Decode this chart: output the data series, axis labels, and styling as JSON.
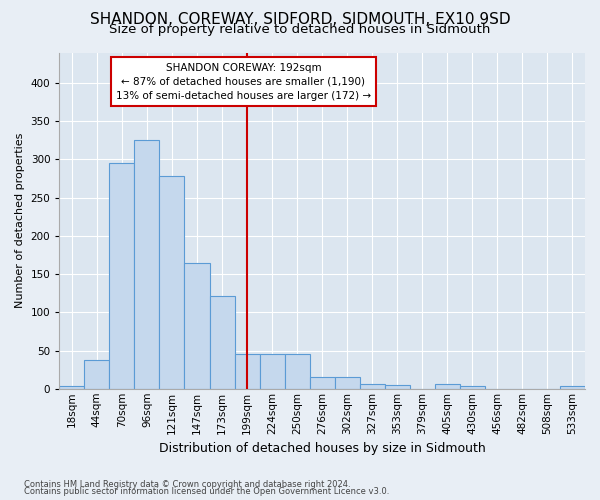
{
  "title1": "SHANDON, COREWAY, SIDFORD, SIDMOUTH, EX10 9SD",
  "title2": "Size of property relative to detached houses in Sidmouth",
  "xlabel": "Distribution of detached houses by size in Sidmouth",
  "ylabel": "Number of detached properties",
  "footer1": "Contains HM Land Registry data © Crown copyright and database right 2024.",
  "footer2": "Contains public sector information licensed under the Open Government Licence v3.0.",
  "annotation_title": "SHANDON COREWAY: 192sqm",
  "annotation_line1": "← 87% of detached houses are smaller (1,190)",
  "annotation_line2": "13% of semi-detached houses are larger (172) →",
  "property_size": 192,
  "bar_labels": [
    "18sqm",
    "44sqm",
    "70sqm",
    "96sqm",
    "121sqm",
    "147sqm",
    "173sqm",
    "199sqm",
    "224sqm",
    "250sqm",
    "276sqm",
    "302sqm",
    "327sqm",
    "353sqm",
    "379sqm",
    "405sqm",
    "430sqm",
    "456sqm",
    "482sqm",
    "508sqm",
    "533sqm"
  ],
  "bar_values": [
    4,
    38,
    295,
    325,
    278,
    165,
    122,
    45,
    46,
    46,
    15,
    15,
    6,
    5,
    0,
    6,
    4,
    0,
    0,
    0,
    4
  ],
  "bar_color": "#c5d8ed",
  "bar_edge_color": "#5b9bd5",
  "vline_color": "#cc0000",
  "vline_x_index": 7,
  "annotation_box_color": "#cc0000",
  "background_color": "#e8eef5",
  "plot_bg_color": "#dce6f0",
  "grid_color": "#ffffff",
  "ylim": [
    0,
    440
  ],
  "yticks": [
    0,
    50,
    100,
    150,
    200,
    250,
    300,
    350,
    400
  ],
  "title1_fontsize": 11,
  "title2_fontsize": 9.5,
  "xlabel_fontsize": 9,
  "ylabel_fontsize": 8,
  "tick_fontsize": 7.5,
  "footer_fontsize": 6
}
